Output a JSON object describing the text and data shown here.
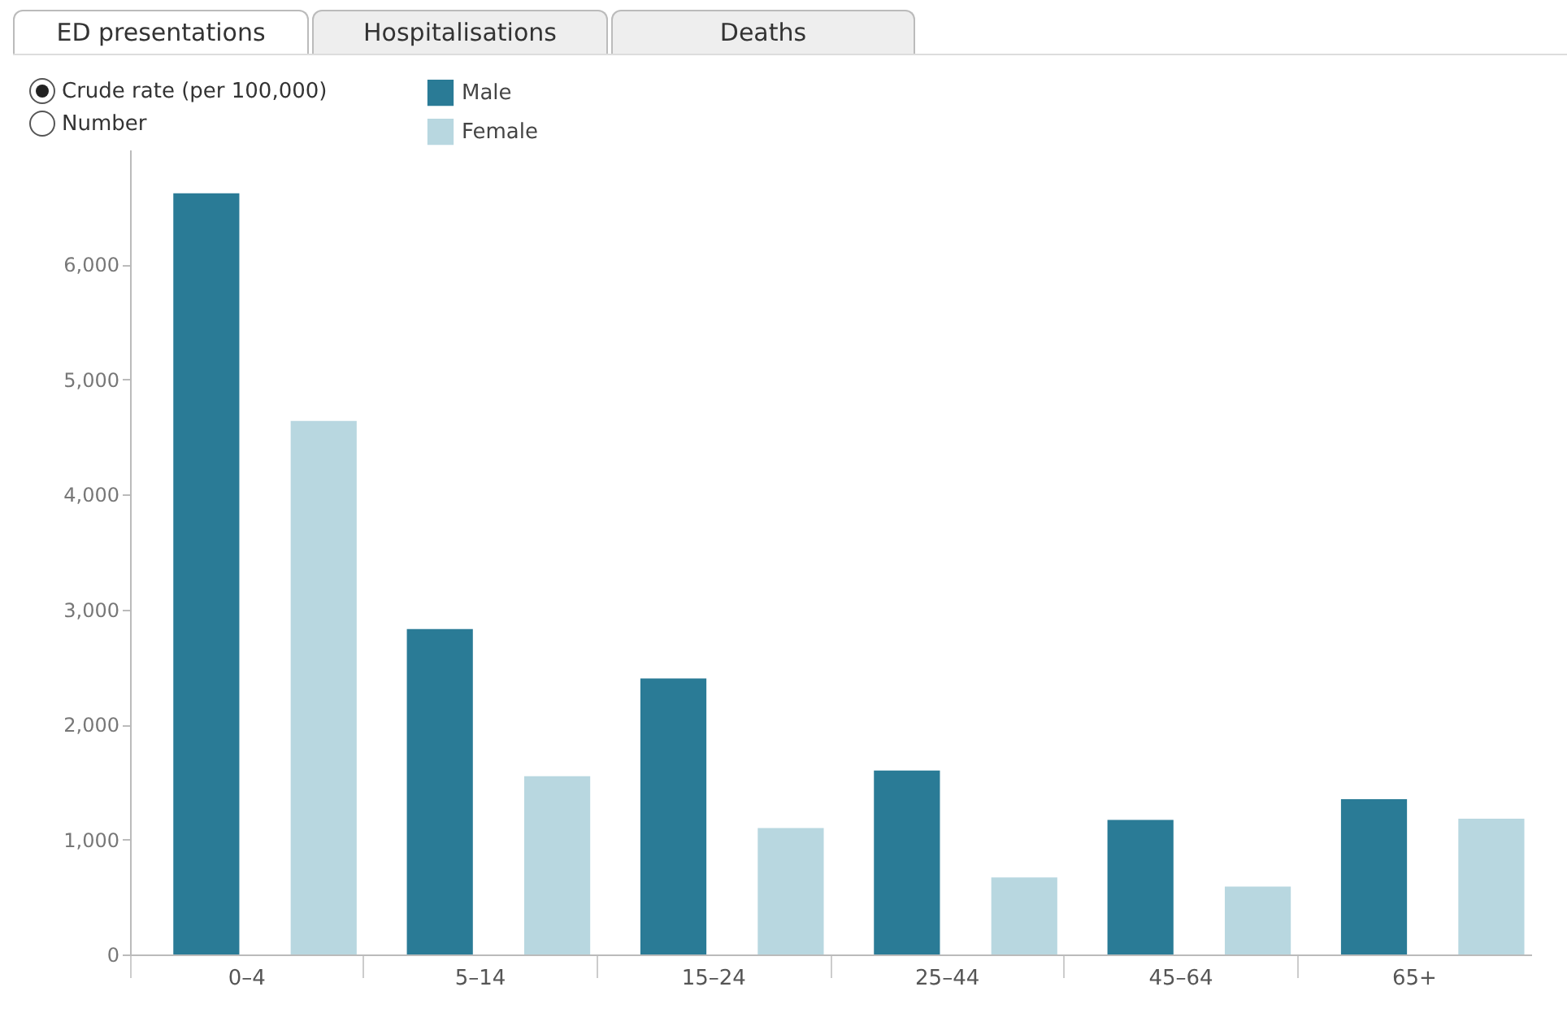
{
  "chart_data": {
    "type": "bar",
    "categories": [
      "0–4",
      "5–14",
      "15–24",
      "25–44",
      "45–64",
      "65+"
    ],
    "series": [
      {
        "name": "Male",
        "color": "#2a7b96",
        "values": [
          6620,
          2830,
          2400,
          1600,
          1170,
          1350
        ]
      },
      {
        "name": "Female",
        "color": "#b8d7e0",
        "values": [
          4640,
          1550,
          1100,
          670,
          590,
          1180
        ]
      }
    ],
    "ylim": [
      0,
      7000
    ],
    "yticks": [
      0,
      {
        "value": 1000,
        "label": "1,000"
      },
      {
        "value": 2000,
        "label": "2,000"
      },
      {
        "value": 3000,
        "label": "3,000"
      },
      {
        "value": 4000,
        "label": "4,000"
      },
      {
        "value": 5000,
        "label": "5,000"
      },
      {
        "value": 6000,
        "label": "6,000"
      }
    ],
    "grid": false,
    "legend": "top left",
    "annotations": [
      "ED presentations",
      "Hospitalisations",
      "Deaths",
      "Crude rate (per 100,000)",
      "Number"
    ]
  }
}
